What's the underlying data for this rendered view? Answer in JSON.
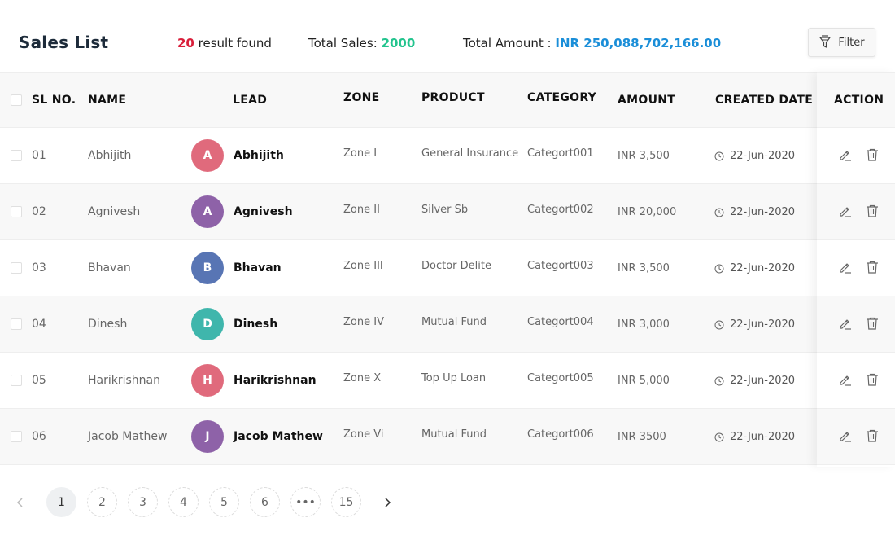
{
  "header": {
    "title": "Sales List",
    "result_count": "20",
    "result_label": "result found",
    "total_sales_label": "Total Sales:",
    "total_sales_value": "2000",
    "total_amount_label": "Total Amount :",
    "total_amount_value": "INR 250,088,702,166.00",
    "filter_label": "Filter"
  },
  "columns": {
    "sl": "SL NO.",
    "name": "NAME",
    "lead": "LEAD",
    "zone": "ZONE",
    "product": "PRODUCT",
    "category": "CATEGORY",
    "amount": "AMOUNT",
    "created": "CREATED DATE",
    "action": "ACTION"
  },
  "rows": [
    {
      "sl": "01",
      "name": "Abhijith",
      "initial": "A",
      "avatar_color": "#e06a7c",
      "lead": "Abhijith",
      "zone": "Zone I",
      "product": "General Insurance",
      "category": "Categort001",
      "amount": "INR 3,500",
      "date": "22-Jun-2020"
    },
    {
      "sl": "02",
      "name": "Agnivesh",
      "initial": "A",
      "avatar_color": "#8e62a8",
      "lead": "Agnivesh",
      "zone": "Zone II",
      "product": "Silver Sb",
      "category": "Categort002",
      "amount": "INR 20,000",
      "date": "22-Jun-2020"
    },
    {
      "sl": "03",
      "name": "Bhavan",
      "initial": "B",
      "avatar_color": "#5875b4",
      "lead": "Bhavan",
      "zone": "Zone III",
      "product": "Doctor Delite",
      "category": "Categort003",
      "amount": "INR 3,500",
      "date": "22-Jun-2020"
    },
    {
      "sl": "04",
      "name": "Dinesh",
      "initial": "D",
      "avatar_color": "#3fb6ac",
      "lead": "Dinesh",
      "zone": "Zone IV",
      "product": "Mutual Fund",
      "category": "Categort004",
      "amount": "INR 3,000",
      "date": "22-Jun-2020"
    },
    {
      "sl": "05",
      "name": "Harikrishnan",
      "initial": "H",
      "avatar_color": "#e06a7c",
      "lead": "Harikrishnan",
      "zone": "Zone X",
      "product": "Top Up Loan",
      "category": "Categort005",
      "amount": "INR 5,000",
      "date": "22-Jun-2020"
    },
    {
      "sl": "06",
      "name": "Jacob Mathew",
      "initial": "J",
      "avatar_color": "#8e62a8",
      "lead": "Jacob Mathew",
      "zone": "Zone Vi",
      "product": "Mutual Fund",
      "category": "Categort006",
      "amount": "INR 3500",
      "date": "22-Jun-2020"
    }
  ],
  "pagination": {
    "pages": [
      "1",
      "2",
      "3",
      "4",
      "5",
      "6",
      "•••",
      "15"
    ],
    "active": "1"
  }
}
